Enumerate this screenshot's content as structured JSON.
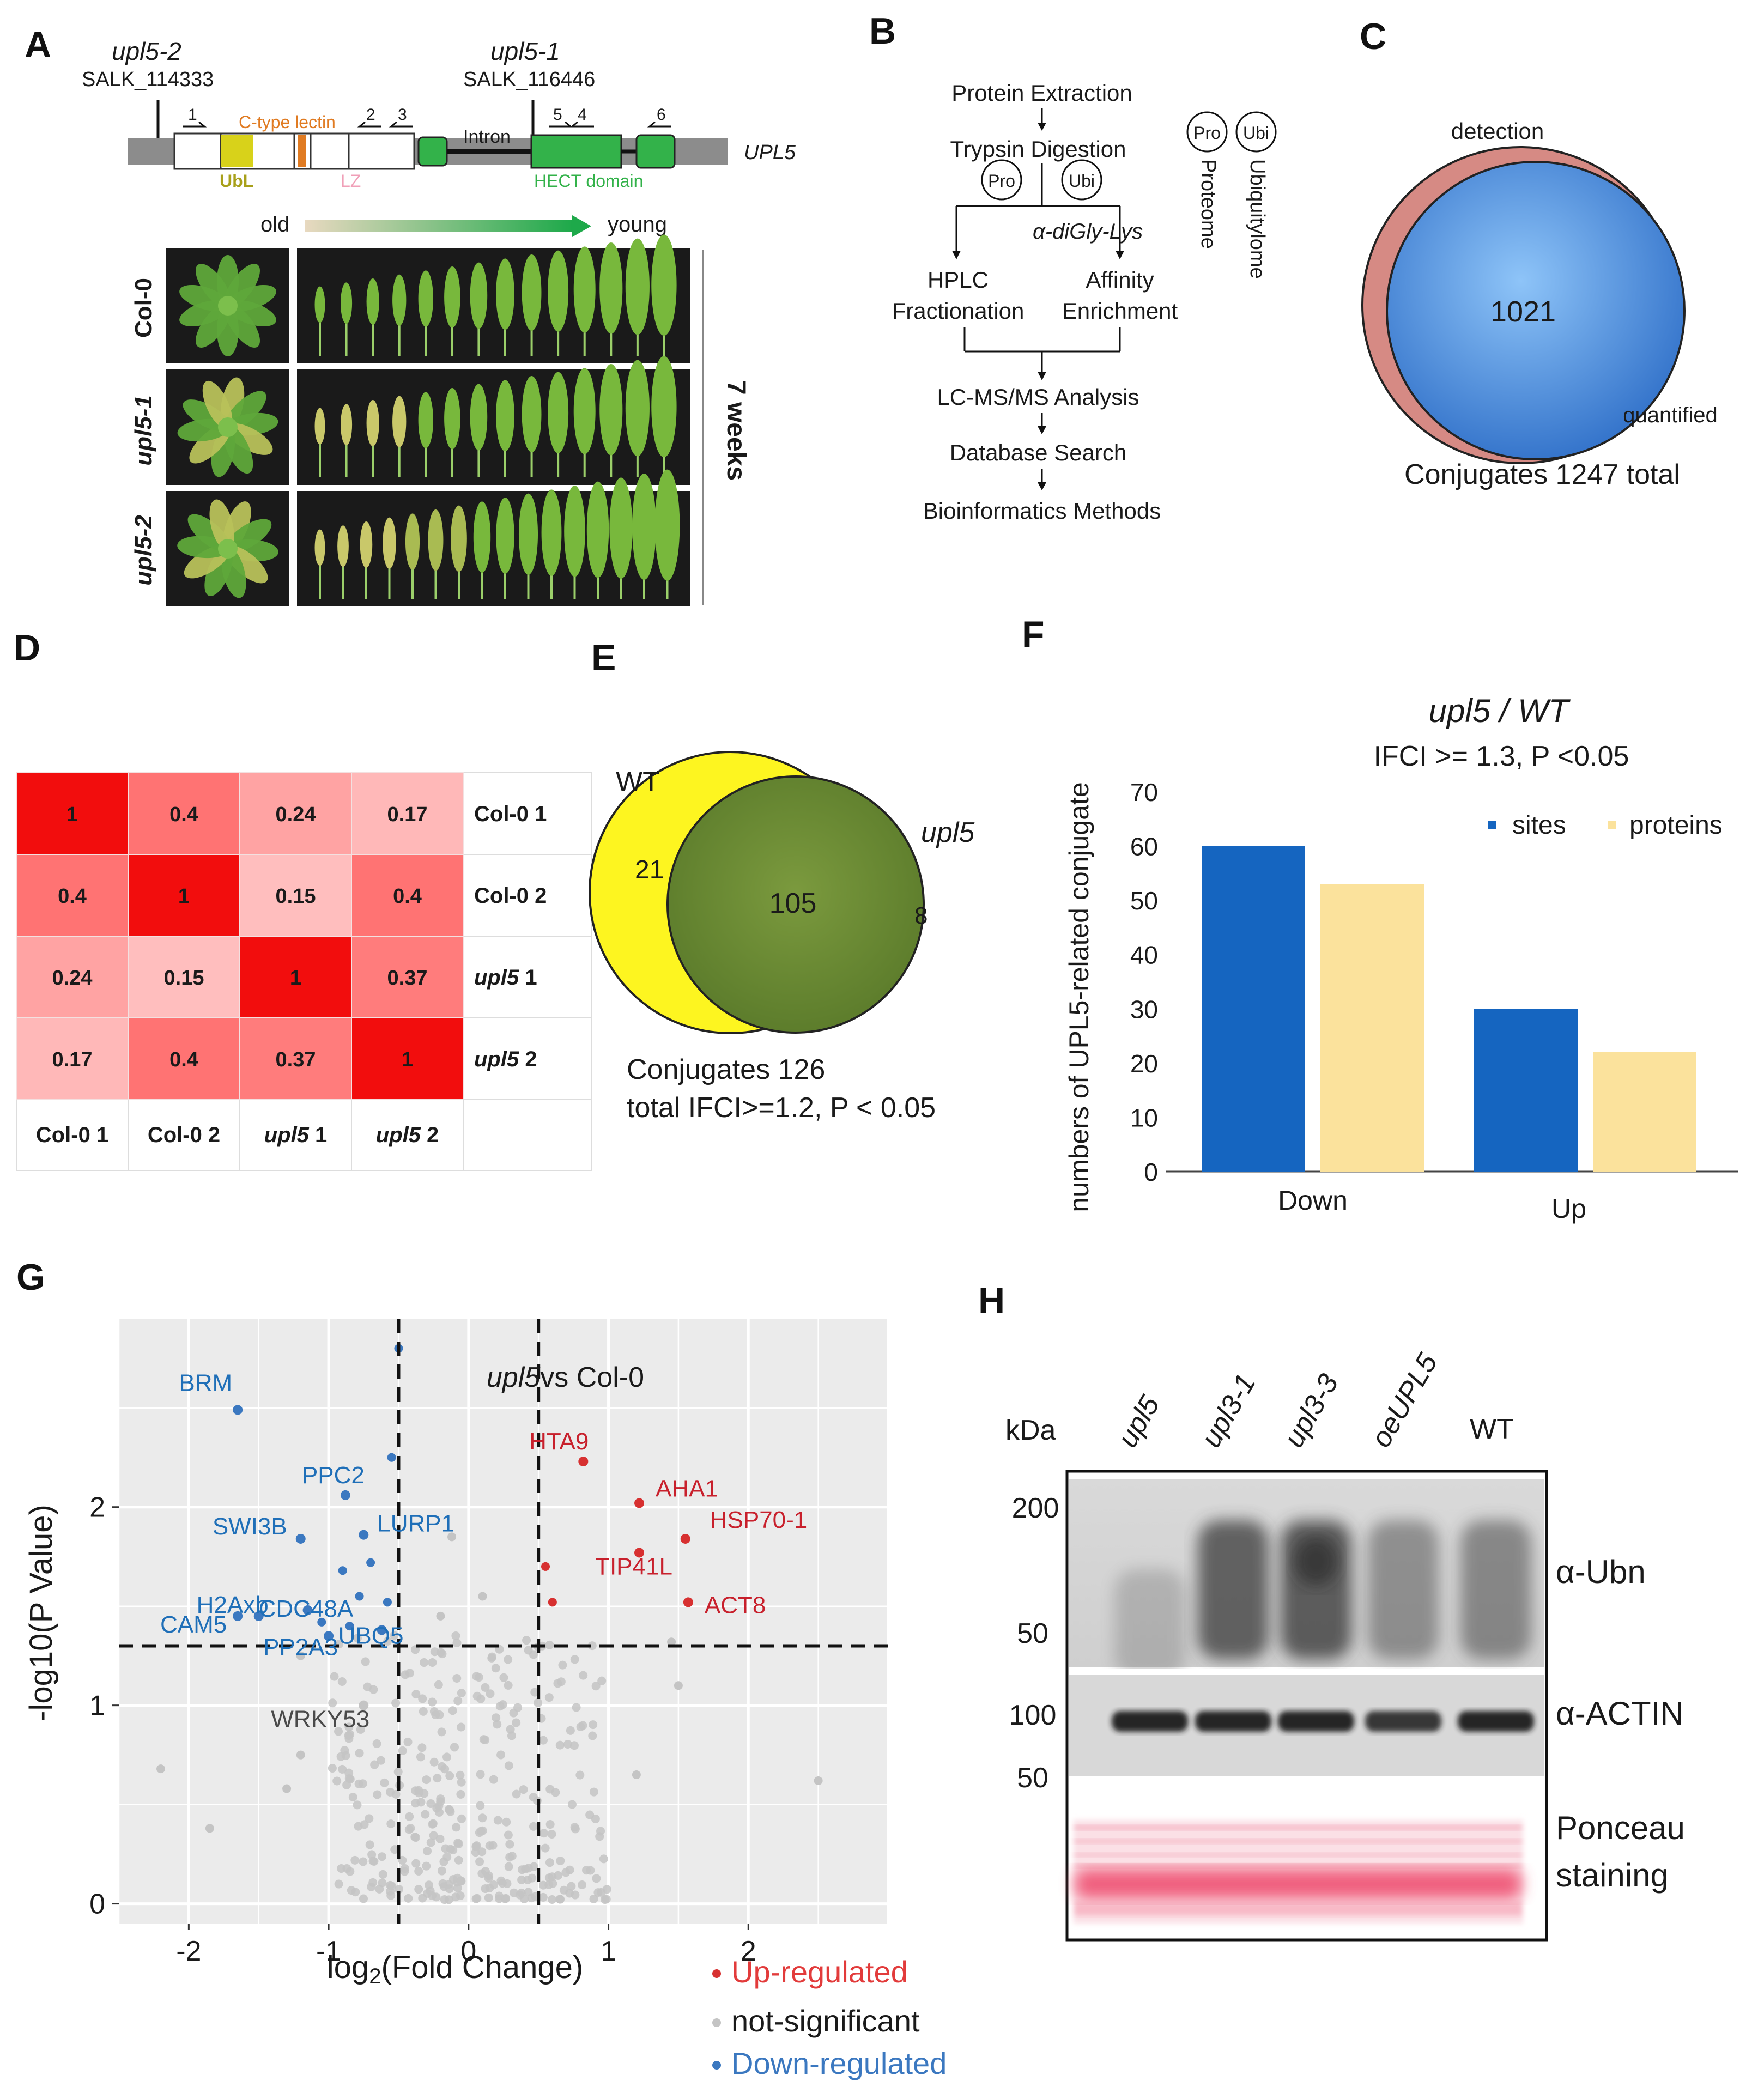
{
  "panels": {
    "A": "A",
    "B": "B",
    "C": "C",
    "D": "D",
    "E": "E",
    "F": "F",
    "G": "G",
    "H": "H"
  },
  "panelA": {
    "allele1_name": "upl5-2",
    "allele1_salk": "SALK_114333",
    "allele2_name": "upl5-1",
    "allele2_salk": "SALK_116446",
    "gene": "UPL5",
    "primers": [
      "1",
      "2",
      "3",
      "5",
      "4",
      "6"
    ],
    "domain_ctype": "C-type lectin",
    "domain_ubl": "UbL",
    "domain_lz": "LZ",
    "intron": "Intron",
    "domain_hect": "HECT domain",
    "age_old": "old",
    "age_young": "young",
    "rows": [
      "Col-0",
      "upl5-1",
      "upl5-2"
    ],
    "duration": "7 weeks",
    "colors": {
      "ubl": "#d8d21a",
      "lectin": "#e07b22",
      "hect": "#33b24a",
      "lz": "#f0a0b8"
    }
  },
  "panelB": {
    "steps": [
      "Protein Extraction",
      "Trypsin Digestion"
    ],
    "pro": "Pro",
    "ubi": "Ubi",
    "antibody": "α-diGly-Lys",
    "hplc": "HPLC",
    "fractionation": "Fractionation",
    "affinity": "Affinity",
    "enrichment": "Enrichment",
    "steps2": [
      "LC-MS/MS Analysis",
      "Database Search",
      "Bioinformatics Methods"
    ],
    "legend_pro": "Proteome",
    "legend_ubi": "Ubiquitylome"
  },
  "panelC": {
    "detection": "detection",
    "quantified": "quantified",
    "overlap": "1021",
    "caption": "Conjugates 1247 total"
  },
  "panelD": {
    "matrix": [
      [
        1,
        0.4,
        0.24,
        0.17
      ],
      [
        0.4,
        1,
        0.15,
        0.4
      ],
      [
        0.24,
        0.15,
        1,
        0.37
      ],
      [
        0.17,
        0.4,
        0.37,
        1
      ]
    ],
    "labels": [
      "1",
      "0.4",
      "0.24",
      "0.17",
      "0.4",
      "1",
      "0.15",
      "0.4",
      "0.24",
      "0.15",
      "1",
      "0.37",
      "0.17",
      "0.4",
      "0.37",
      "1"
    ],
    "row_labels": [
      {
        "a": "Col-0",
        "b": " 1"
      },
      {
        "a": "Col-0",
        "b": " 2"
      },
      {
        "a": "upl5",
        "b": " 1"
      },
      {
        "a": "upl5",
        "b": " 2"
      }
    ],
    "col_labels": [
      {
        "a": "Col-0",
        "b": " 1"
      },
      {
        "a": "Col-0",
        "b": " 2"
      },
      {
        "a": "upl5",
        "b": " 1"
      },
      {
        "a": "upl5",
        "b": " 2"
      }
    ]
  },
  "panelE": {
    "wt": "WT",
    "upl5": "upl5",
    "only_wt": "21",
    "overlap": "105",
    "only_upl5": "8",
    "caption1": "Conjugates 126",
    "caption2": "total IFCI>=1.2, P < 0.05"
  },
  "chart_data": [
    {
      "type": "bar",
      "title": "upl5 / WT",
      "subtitle": "IFCI >= 1.3, P <0.05",
      "ylabel": "numbers of UPL5-related conjugate",
      "xlabel": "",
      "categories": [
        "Down",
        "Up"
      ],
      "series": [
        {
          "name": "sites",
          "values": [
            60,
            30
          ],
          "color": "#1565c0"
        },
        {
          "name": "proteins",
          "values": [
            53,
            22
          ],
          "color": "#fbe29c"
        }
      ],
      "ylim": [
        0,
        70
      ],
      "yticks": [
        "0",
        "10",
        "20",
        "30",
        "40",
        "50",
        "60",
        "70"
      ],
      "legend": "top-right"
    },
    {
      "type": "scatter",
      "title_a": "upl5",
      "title_b": "vs Col-0",
      "xlabel_a": "log",
      "xlabel_sub": "2",
      "xlabel_b": "(Fold Change)",
      "ylabel": "-log10(P Value)",
      "xlim": [
        -2.5,
        3.0
      ],
      "ylim": [
        -0.1,
        2.95
      ],
      "xticks": [
        "-2",
        "-1",
        "0",
        "1",
        "2"
      ],
      "yticks": [
        "0",
        "1",
        "2"
      ],
      "thresholds": {
        "x": [
          -0.5,
          0.5
        ],
        "y": 1.3
      },
      "colors": {
        "up": "#d73030",
        "down": "#3b78c0",
        "ns": "#c4c4c4"
      },
      "labeled_points": [
        {
          "name": "BRM",
          "x": -1.65,
          "y": 2.49,
          "group": "down"
        },
        {
          "name": "PPC2",
          "x": -0.88,
          "y": 2.06,
          "group": "down"
        },
        {
          "name": "LURP1",
          "x": -0.75,
          "y": 1.86,
          "group": "down"
        },
        {
          "name": "SWI3B",
          "x": -1.2,
          "y": 1.84,
          "group": "down"
        },
        {
          "name": "H2Axb",
          "x": -1.5,
          "y": 1.45,
          "group": "down"
        },
        {
          "name": "CDC48A",
          "x": -1.15,
          "y": 1.48,
          "group": "down"
        },
        {
          "name": "CAM5",
          "x": -1.65,
          "y": 1.45,
          "group": "down"
        },
        {
          "name": "PP2A3",
          "x": -1.0,
          "y": 1.35,
          "group": "down"
        },
        {
          "name": "UBQ5",
          "x": -0.62,
          "y": 1.38,
          "group": "down"
        },
        {
          "name": "HTA9",
          "x": 0.82,
          "y": 2.23,
          "group": "up"
        },
        {
          "name": "AHA1",
          "x": 1.22,
          "y": 2.02,
          "group": "up"
        },
        {
          "name": "HSP70-1",
          "x": 1.55,
          "y": 1.84,
          "group": "up"
        },
        {
          "name": "TIP41L",
          "x": 1.22,
          "y": 1.77,
          "group": "up"
        },
        {
          "name": "ACT8",
          "x": 1.57,
          "y": 1.52,
          "group": "up"
        },
        {
          "name": "WRKY53",
          "x": -0.75,
          "y": 1.0,
          "group": "ns"
        }
      ],
      "legend": [
        "Up-regulated",
        "not-significant",
        "Down-regulated"
      ]
    }
  ],
  "panelH": {
    "kda": "kDa",
    "lanes": [
      "upl5",
      "upl3-1",
      "upl3-3",
      "oeUPL5",
      "WT"
    ],
    "lane_italic": [
      true,
      true,
      true,
      true,
      false
    ],
    "markers_ubn": [
      "200",
      "50"
    ],
    "markers_actin": [
      "100",
      "50"
    ],
    "probe_ubn": "α-Ubn",
    "probe_actin": "α-ACTIN",
    "ponceau1": "Ponceau",
    "ponceau2": "staining"
  }
}
